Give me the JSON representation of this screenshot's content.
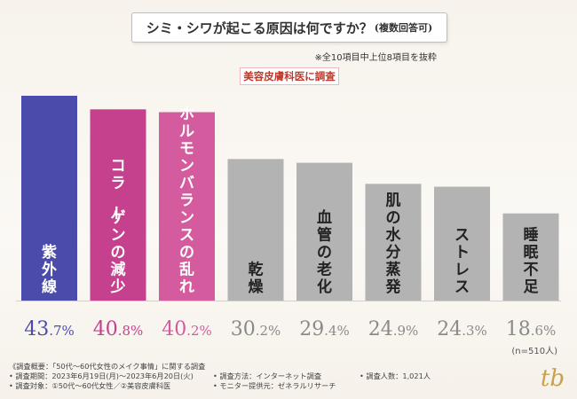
{
  "title": "シミ・シワが起こる原因は何ですか？",
  "title_sub": "(複数回答可)",
  "note": "※全10項目中上位8項目を抜粋",
  "badge": "美容皮膚科医に調査",
  "n_note": "(n=510人)",
  "footer": {
    "line1": "《調査概要：「50代〜60代女性のメイク事情」に関する調査",
    "line2a": "• 調査期間：2023年6月19日(月)〜2023年6月20日(火)",
    "line2b": "• 調査方法：インターネット調査",
    "line2c": "• 調査人数：1,021人",
    "line3a": "• 調査対象：①50代〜60代女性／②美容皮膚科医",
    "line3b": "• モニター提供元：ゼネラルリサーチ"
  },
  "logo": "tb",
  "colors": {
    "top1": "#4a4bab",
    "top2": "#c6418d",
    "top3": "#d45b9d",
    "other": "#b3b3b3"
  },
  "chart_data": {
    "type": "bar",
    "title": "シミ・シワが起こる原因は何ですか？(複数回答可)",
    "categories": [
      "紫外線",
      "コラーゲンの減少",
      "ホルモンバランスの乱れ",
      "乾燥",
      "血管の老化",
      "肌の水分蒸発",
      "ストレス",
      "睡眠不足"
    ],
    "values": [
      43.7,
      40.8,
      40.2,
      30.2,
      29.4,
      24.9,
      24.3,
      18.6
    ],
    "unit": "%",
    "ylim": [
      0,
      45
    ],
    "grid": false,
    "legend": "none"
  }
}
